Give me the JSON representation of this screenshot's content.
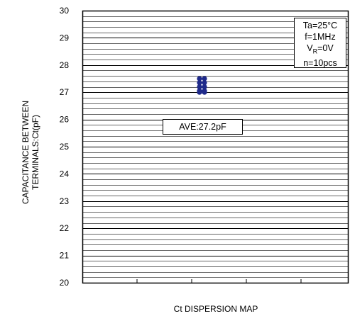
{
  "chart_data": {
    "type": "scatter",
    "title": "",
    "xlabel": "Ct DISPERSION MAP",
    "ylabel_lines": [
      "CAPACITANCE BETWEEN",
      "TERMINALS:Ct(pF)"
    ],
    "ylim": [
      20,
      30
    ],
    "yticks": [
      "20",
      "21",
      "22",
      "23",
      "24",
      "25",
      "26",
      "27",
      "28",
      "29",
      "30"
    ],
    "minor_grid_step": 0.2,
    "grid": true,
    "points": [
      {
        "x": 1,
        "y": 27.5
      },
      {
        "x": 1,
        "y": 27.35
      },
      {
        "x": 1,
        "y": 27.2
      },
      {
        "x": 1,
        "y": 27.05
      },
      {
        "x": 1,
        "y": 27.0
      },
      {
        "x": 2,
        "y": 27.5
      },
      {
        "x": 2,
        "y": 27.35
      },
      {
        "x": 2,
        "y": 27.2
      },
      {
        "x": 2,
        "y": 27.05
      },
      {
        "x": 2,
        "y": 27.0
      }
    ],
    "point_color": "#1f2a8a",
    "conditions": {
      "ta": "Ta=25°C",
      "f": "f=1MHz",
      "vr_prefix": "V",
      "vr_sub": "R",
      "vr_suffix": "=0V",
      "n": "n=10pcs"
    },
    "average_label": "AVE:27.2pF"
  }
}
